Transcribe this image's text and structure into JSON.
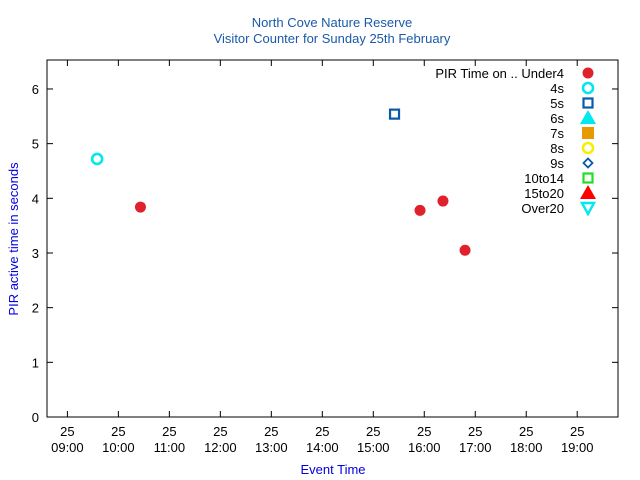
{
  "chart_data": {
    "type": "scatter",
    "title": [
      "North Cove Nature Reserve",
      "Visitor Counter for Sunday 25th February"
    ],
    "xlabel": "Event Time",
    "ylabel": "PIR active time in seconds",
    "xlim": [
      "08:36",
      "19:48"
    ],
    "ylim": [
      0,
      6.53
    ],
    "x_ticks": [
      {
        "day": "25",
        "time": "09:00"
      },
      {
        "day": "25",
        "time": "10:00"
      },
      {
        "day": "25",
        "time": "11:00"
      },
      {
        "day": "25",
        "time": "12:00"
      },
      {
        "day": "25",
        "time": "13:00"
      },
      {
        "day": "25",
        "time": "14:00"
      },
      {
        "day": "25",
        "time": "15:00"
      },
      {
        "day": "25",
        "time": "16:00"
      },
      {
        "day": "25",
        "time": "17:00"
      },
      {
        "day": "25",
        "time": "18:00"
      },
      {
        "day": "25",
        "time": "19:00"
      }
    ],
    "y_ticks": [
      "0",
      "1",
      "2",
      "3",
      "4",
      "5",
      "6"
    ],
    "legend_placement": "top-right",
    "legend_title": "PIR Time on .. ",
    "series": [
      {
        "name": "Under4",
        "marker": "filled-circle",
        "color": "#e0202a",
        "points": [
          [
            "10:26",
            3.84
          ],
          [
            "15:55",
            3.78
          ],
          [
            "16:22",
            3.95
          ],
          [
            "16:48",
            3.05
          ]
        ]
      },
      {
        "name": "4s",
        "marker": "open-circle",
        "color": "#00e8f0",
        "points": [
          [
            "09:35",
            4.72
          ]
        ]
      },
      {
        "name": "5s",
        "marker": "open-square",
        "color": "#0a5aa8",
        "points": [
          [
            "15:25",
            5.54
          ]
        ]
      },
      {
        "name": "6s",
        "marker": "filled-triangle",
        "color": "#00e8f0",
        "points": []
      },
      {
        "name": "7s",
        "marker": "filled-square",
        "color": "#e49a00",
        "points": []
      },
      {
        "name": "8s",
        "marker": "open-circle",
        "color": "#f5f000",
        "points": []
      },
      {
        "name": "9s",
        "marker": "open-diamond",
        "color": "#0a5aa8",
        "points": []
      },
      {
        "name": "10to14",
        "marker": "open-square",
        "color": "#20e020",
        "points": []
      },
      {
        "name": "15to20",
        "marker": "filled-triangle",
        "color": "#ff0000",
        "points": []
      },
      {
        "name": "Over20",
        "marker": "open-triangle-down",
        "color": "#00e8f0",
        "points": []
      }
    ]
  }
}
